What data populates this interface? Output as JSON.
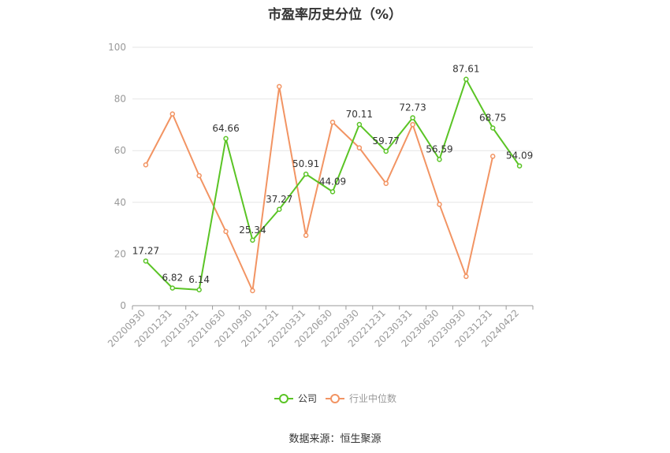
{
  "chart_data": {
    "type": "line",
    "title": "市盈率历史分位（%）",
    "categories": [
      "20200930",
      "20201231",
      "20210331",
      "20210630",
      "20210930",
      "20211231",
      "20220331",
      "20220630",
      "20220930",
      "20221231",
      "20230331",
      "20230630",
      "20230930",
      "20231231",
      "20240422"
    ],
    "ylim": [
      0,
      100
    ],
    "yticks": [
      0,
      20,
      40,
      60,
      80,
      100
    ],
    "grid": true,
    "legend_position": "bottom",
    "series": [
      {
        "name": "公司",
        "color": "#5ac425",
        "values": [
          17.27,
          6.82,
          6.14,
          64.66,
          25.34,
          37.27,
          50.91,
          44.09,
          70.11,
          59.77,
          72.73,
          56.59,
          87.61,
          68.75,
          54.09
        ],
        "labels": [
          "17.27",
          "6.82",
          "6.14",
          "64.66",
          "25.34",
          "37.27",
          "50.91",
          "44.09",
          "70.11",
          "59.77",
          "72.73",
          "56.59",
          "87.61",
          "68.75",
          "54.09"
        ],
        "show_labels": true
      },
      {
        "name": "行业中位数",
        "color": "#f29463",
        "values": [
          54.5,
          74.2,
          50.3,
          28.7,
          5.8,
          84.8,
          27.2,
          71.0,
          61.1,
          47.3,
          70.1,
          39.2,
          11.3,
          57.8,
          null
        ],
        "show_labels": false
      }
    ]
  },
  "source_text": "数据来源：恒生聚源"
}
